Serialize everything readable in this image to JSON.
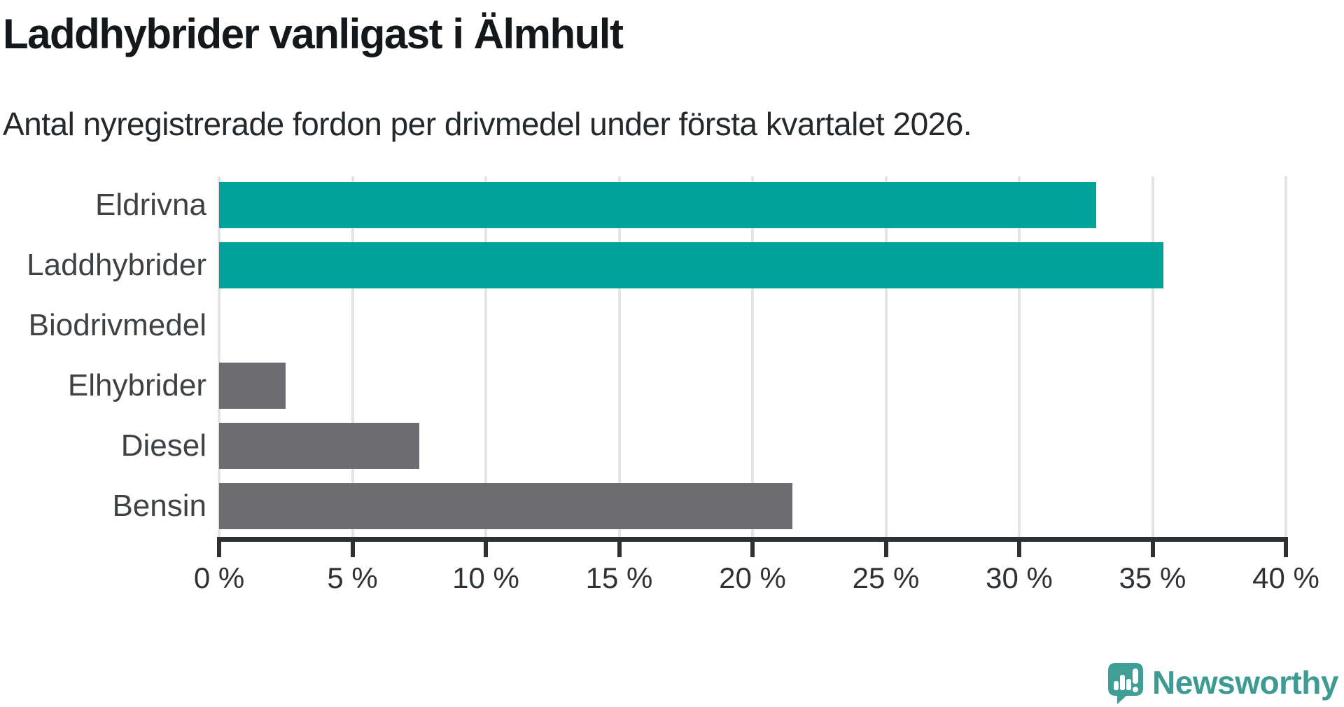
{
  "header": {
    "title": "Laddhybrider vanligast i Älmhult",
    "subtitle": "Antal nyregistrerade fordon per drivmedel under första kvartalet 2026."
  },
  "chart_data": {
    "type": "bar",
    "orientation": "horizontal",
    "title": "Laddhybrider vanligast i Älmhult",
    "subtitle": "Antal nyregistrerade fordon per drivmedel under första kvartalet 2026.",
    "categories": [
      "Eldrivna",
      "Laddhybrider",
      "Biodrivmedel",
      "Elhybrider",
      "Diesel",
      "Bensin"
    ],
    "values": [
      32.9,
      35.4,
      0,
      2.5,
      7.5,
      21.5
    ],
    "unit": "%",
    "xlabel": "",
    "ylabel": "",
    "xlim": [
      0,
      40
    ],
    "x_ticks": [
      0,
      5,
      10,
      15,
      20,
      25,
      30,
      35,
      40
    ],
    "x_tick_labels": [
      "0 %",
      "5 %",
      "10 %",
      "15 %",
      "20 %",
      "25 %",
      "30 %",
      "35 %",
      "40 %"
    ],
    "grid": true,
    "legend": "none",
    "colors": {
      "highlight": "#00a29a",
      "default": "#6c6c71",
      "bar_colors": [
        "#00a29a",
        "#00a29a",
        "#00a29a",
        "#6c6c71",
        "#6c6c71",
        "#6c6c71"
      ]
    }
  },
  "footer": {
    "brand": "Newsworthy",
    "brand_color": "#3e9b93",
    "logo_icon": "newsworthy-speech-bubble-barchart-icon"
  }
}
